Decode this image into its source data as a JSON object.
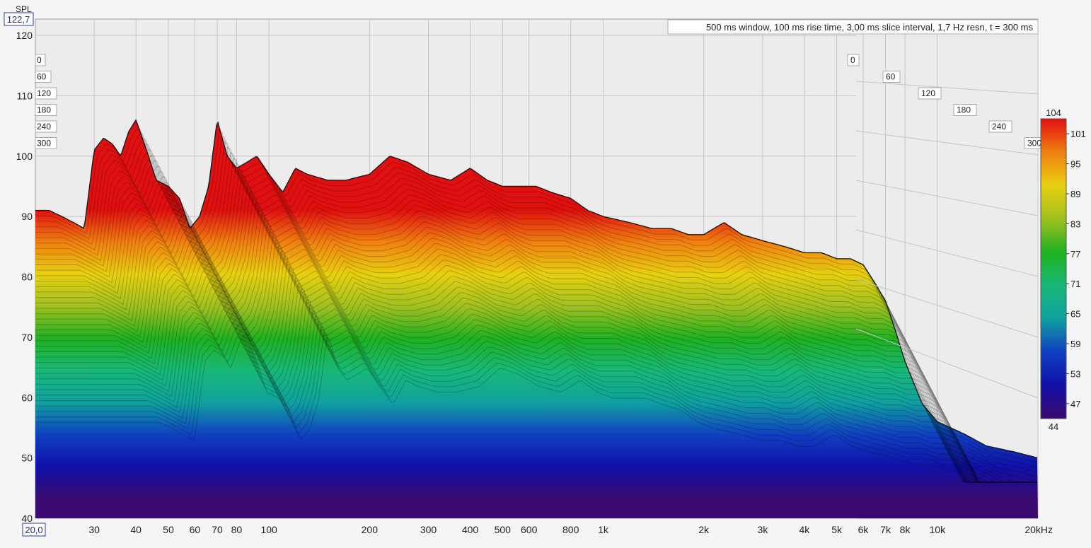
{
  "chart_data": {
    "type": "area",
    "title": "500 ms window, 100 ms rise time, 3,00 ms slice interval, 1,7 Hz resn, t = 300 ms",
    "ylabel": "SPL",
    "xlabel": "",
    "x_scale": "log",
    "xlim": [
      20,
      20000
    ],
    "ylim": [
      40,
      122.7
    ],
    "xlim_readout": "20,0",
    "ylim_readout": "122,7",
    "x_ticks": [
      {
        "value": 30,
        "label": "30"
      },
      {
        "value": 40,
        "label": "40"
      },
      {
        "value": 50,
        "label": "50"
      },
      {
        "value": 60,
        "label": "60"
      },
      {
        "value": 70,
        "label": "70"
      },
      {
        "value": 80,
        "label": "80"
      },
      {
        "value": 100,
        "label": "100"
      },
      {
        "value": 200,
        "label": "200"
      },
      {
        "value": 300,
        "label": "300"
      },
      {
        "value": 400,
        "label": "400"
      },
      {
        "value": 500,
        "label": "500"
      },
      {
        "value": 600,
        "label": "600"
      },
      {
        "value": 800,
        "label": "800"
      },
      {
        "value": 1000,
        "label": "1k"
      },
      {
        "value": 2000,
        "label": "2k"
      },
      {
        "value": 3000,
        "label": "3k"
      },
      {
        "value": 4000,
        "label": "4k"
      },
      {
        "value": 5000,
        "label": "5k"
      },
      {
        "value": 6000,
        "label": "6k"
      },
      {
        "value": 7000,
        "label": "7k"
      },
      {
        "value": 8000,
        "label": "8k"
      },
      {
        "value": 10000,
        "label": "10k"
      },
      {
        "value": 20000,
        "label": "20kHz"
      }
    ],
    "y_ticks": [
      40,
      50,
      60,
      70,
      80,
      90,
      100,
      110,
      120
    ],
    "time_ticks": [
      "0",
      "60",
      "120",
      "180",
      "240",
      "300"
    ],
    "colorbar": {
      "min": 44,
      "max": 104,
      "ticks": [
        47,
        53,
        59,
        65,
        71,
        77,
        83,
        89,
        95,
        101
      ],
      "colors": [
        "#3a0a6e",
        "#1010a8",
        "#1040c0",
        "#10a0a0",
        "#18b878",
        "#20b020",
        "#a0c020",
        "#e8d010",
        "#f08010",
        "#e01010"
      ]
    },
    "series": [
      {
        "x": [
          20,
          22,
          24,
          26,
          28,
          30,
          32,
          34,
          36,
          38,
          40,
          43,
          46,
          50,
          54,
          58,
          62,
          66,
          70,
          75,
          80,
          86,
          92,
          100,
          110,
          120,
          130,
          150,
          170,
          200,
          230,
          260,
          300,
          350,
          400,
          450,
          500,
          560,
          630,
          700,
          800,
          900,
          1000,
          1200,
          1400,
          1600,
          1800,
          2000,
          2300,
          2600,
          3000,
          3500,
          4000,
          4500,
          5000,
          5500,
          6000,
          6500,
          7000,
          7500,
          8000,
          9000,
          10000,
          12000,
          14000,
          17000,
          20000
        ],
        "y": [
          91,
          91,
          90,
          89,
          88,
          101,
          103,
          102,
          100,
          104,
          106,
          101,
          96,
          95,
          93,
          88,
          90,
          95,
          106,
          100,
          98,
          99,
          100,
          97,
          94,
          98,
          97,
          96,
          96,
          97,
          100,
          99,
          97,
          96,
          98,
          96,
          95,
          95,
          95,
          94,
          93,
          91,
          90,
          89,
          88,
          88,
          87,
          87,
          89,
          87,
          86,
          85,
          84,
          84,
          83,
          83,
          82,
          79,
          76,
          71,
          66,
          59,
          56,
          54,
          52,
          51,
          50
        ]
      }
    ]
  }
}
